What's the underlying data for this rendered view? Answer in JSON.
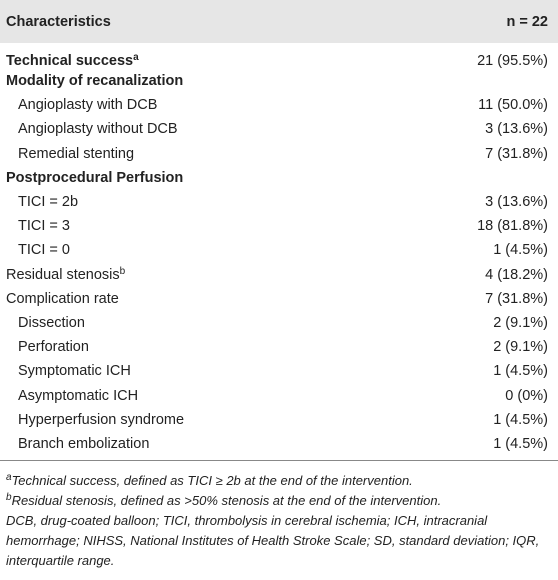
{
  "table": {
    "header": {
      "title": "Characteristics",
      "n": "n = 22"
    },
    "rows": [
      {
        "label": "Technical success",
        "sup": "a",
        "value": "21 (95.5%)"
      },
      {
        "label": "Modality of recanalization"
      },
      {
        "label": "Angioplasty with DCB",
        "value": "11 (50.0%)"
      },
      {
        "label": "Angioplasty without DCB",
        "value": "3 (13.6%)"
      },
      {
        "label": "Remedial stenting",
        "value": "7 (31.8%)"
      },
      {
        "label": "Postprocedural Perfusion"
      },
      {
        "label": "TICI = 2b",
        "value": "3 (13.6%)"
      },
      {
        "label": "TICI = 3",
        "value": "18 (81.8%)"
      },
      {
        "label": "TICI = 0",
        "value": "1 (4.5%)"
      },
      {
        "label": "Residual stenosis",
        "sup": "b",
        "value": "4 (18.2%)"
      },
      {
        "label": "Complication rate",
        "value": "7 (31.8%)"
      },
      {
        "label": "Dissection",
        "value": "2 (9.1%)"
      },
      {
        "label": "Perforation",
        "value": "2 (9.1%)"
      },
      {
        "label": "Symptomatic ICH",
        "value": "1 (4.5%)"
      },
      {
        "label": "Asymptomatic ICH",
        "value": "0 (0%)"
      },
      {
        "label": "Hyperperfusion syndrome",
        "value": "1 (4.5%)"
      },
      {
        "label": "Branch embolization",
        "value": "1 (4.5%)"
      }
    ],
    "footnotes": [
      {
        "mark": "a",
        "text": "Technical success, defined as TICI ≥ 2b at the end of the intervention."
      },
      {
        "mark": "b",
        "text": "Residual stenosis, defined as >50% stenosis at the end of the intervention."
      },
      {
        "text": "DCB, drug-coated balloon; TICI, thrombolysis in cerebral ischemia; ICH, intracranial hemorrhage; NIHSS, National Institutes of Health Stroke Scale; SD, standard deviation; IQR, interquartile range."
      }
    ]
  }
}
